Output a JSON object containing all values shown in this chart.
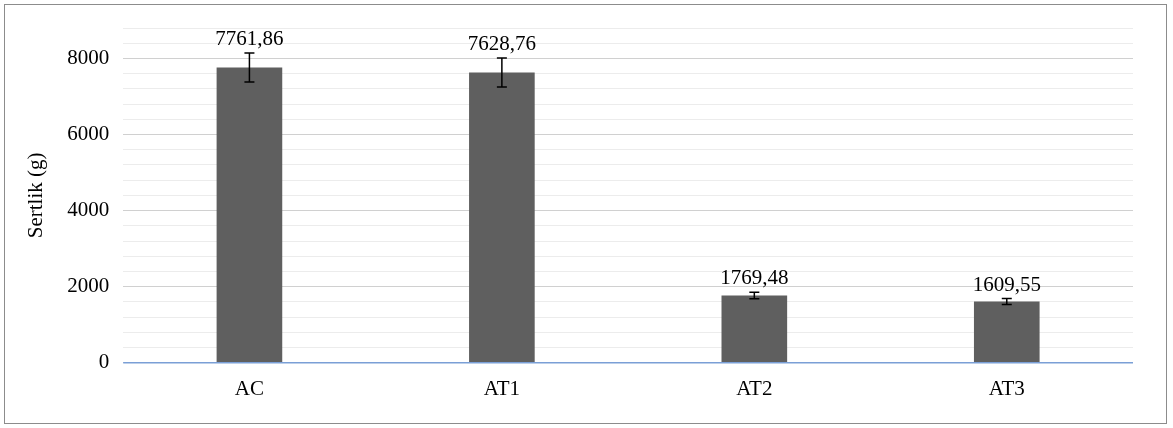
{
  "chart_data": {
    "type": "bar",
    "ylabel": "Sertlik (g)",
    "categories": [
      "AC",
      "AT1",
      "AT2",
      "AT3"
    ],
    "values": [
      7761.86,
      7628.76,
      1769.48,
      1609.55
    ],
    "errors": [
      380,
      380,
      85,
      80
    ],
    "value_labels": [
      "7761,86",
      "7628,76",
      "1769,48",
      "1609,55"
    ],
    "color": "#5f5f5f",
    "ylim": [
      0,
      8800
    ],
    "yticks": [
      0,
      {
        "value": 400,
        "label": null
      },
      {
        "value": 800,
        "label": null
      },
      {
        "value": 1200,
        "label": null
      },
      {
        "value": 1600,
        "label": null
      },
      2000,
      {
        "value": 2400,
        "label": null
      },
      {
        "value": 2800,
        "label": null
      },
      {
        "value": 3200,
        "label": null
      },
      {
        "value": 3600,
        "label": null
      },
      4000,
      {
        "value": 4400,
        "label": null
      },
      {
        "value": 4800,
        "label": null
      },
      {
        "value": 5200,
        "label": null
      },
      {
        "value": 5600,
        "label": null
      },
      6000,
      {
        "value": 6400,
        "label": null
      },
      {
        "value": 6800,
        "label": null
      },
      {
        "value": 7200,
        "label": null
      },
      {
        "value": 7600,
        "label": null
      },
      8000,
      {
        "value": 8400,
        "label": null
      },
      {
        "value": 8800,
        "label": null
      }
    ],
    "grid": "y",
    "legend": false
  }
}
